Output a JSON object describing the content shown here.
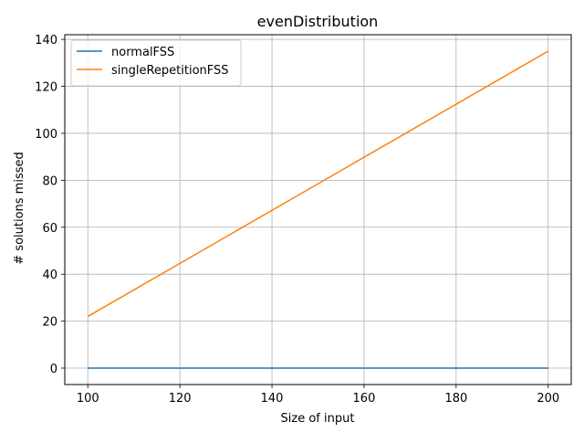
{
  "chart_data": {
    "type": "line",
    "title": "evenDistribution",
    "xlabel": "Size of input",
    "ylabel": "# solutions missed",
    "xlim": [
      95,
      205
    ],
    "ylim": [
      -7,
      142
    ],
    "xticks": [
      100,
      120,
      140,
      160,
      180,
      200
    ],
    "yticks": [
      0,
      20,
      40,
      60,
      80,
      100,
      120,
      140
    ],
    "grid": true,
    "legend_position": "top-left",
    "series": [
      {
        "name": "normalFSS",
        "color": "#1f77b4",
        "x": [
          100,
          200
        ],
        "y": [
          0,
          0
        ]
      },
      {
        "name": "singleRepetitionFSS",
        "color": "#ff7f0e",
        "x": [
          100,
          200
        ],
        "y": [
          22,
          135
        ]
      }
    ]
  }
}
